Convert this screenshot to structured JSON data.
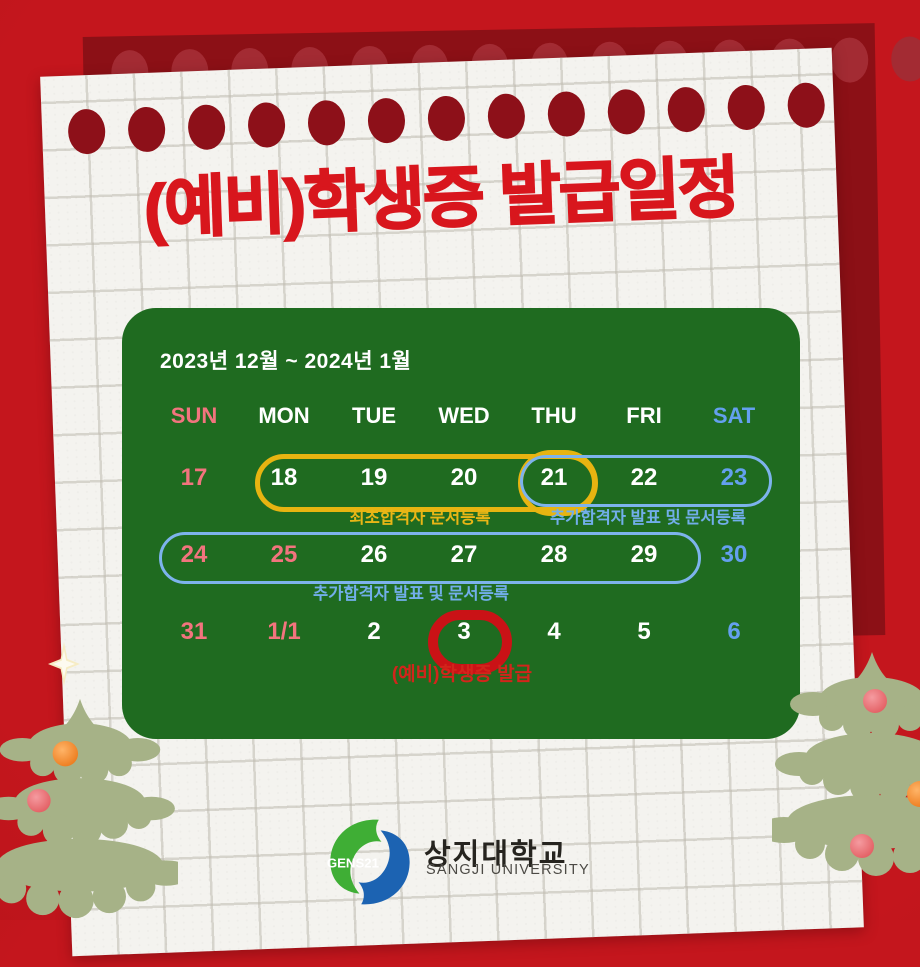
{
  "title": "(예비)학생증 발급일정",
  "calendar": {
    "period": "2023년 12월 ~ 2024년 1월",
    "weekdays": [
      "SUN",
      "MON",
      "TUE",
      "WED",
      "THU",
      "FRI",
      "SAT"
    ],
    "weeks": [
      {
        "days": [
          "17",
          "18",
          "19",
          "20",
          "21",
          "22",
          "23"
        ]
      },
      {
        "days": [
          "24",
          "25",
          "26",
          "27",
          "28",
          "29",
          "30"
        ]
      },
      {
        "days": [
          "31",
          "1/1",
          "2",
          "3",
          "4",
          "5",
          "6"
        ]
      }
    ],
    "annotations": {
      "initial_reg": "최초합격자 문서등록",
      "additional_reg_week1": "추가합격자 발표 및 문서등록",
      "additional_reg_week2": "추가합격자 발표 및 문서등록",
      "card_issue": "(예비)학생증 발급"
    }
  },
  "footer": {
    "logo_badge": "GENS21",
    "university_kr": "상지대학교",
    "university_en": "SANGJI UNIVERSITY"
  },
  "colors": {
    "background_red": "#c4161d",
    "dark_sheet_red": "#8c1016",
    "title_red": "#d8161d",
    "calendar_green": "#1f6b20",
    "sunday_pink": "#f2747e",
    "saturday_blue": "#64a0ee",
    "highlight_yellow": "#e7b411",
    "highlight_blue": "#7db3ec",
    "highlight_red": "#ca1216",
    "logo_green": "#3fae35",
    "logo_blue": "#1c63b2"
  }
}
